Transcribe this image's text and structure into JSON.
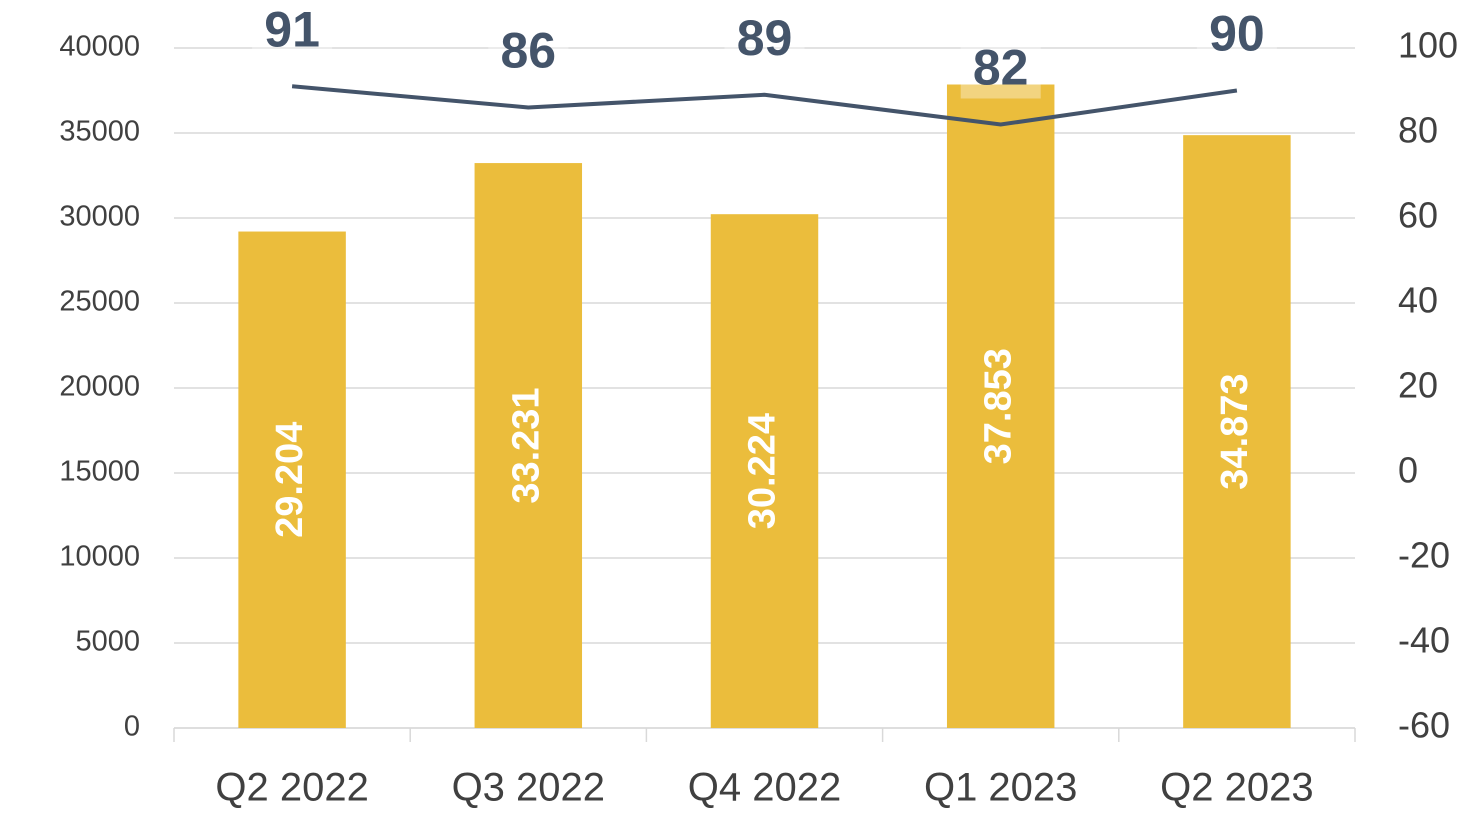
{
  "chart_data": {
    "type": "bar_line",
    "categories": [
      "Q2 2022",
      "Q3 2022",
      "Q4 2022",
      "Q1 2023",
      "Q2 2023"
    ],
    "series": [
      {
        "type": "bar",
        "color": "#ebbd3c",
        "values": [
          29204,
          33231,
          30224,
          37853,
          34873
        ],
        "value_labels": [
          "29.204",
          "33.231",
          "30.224",
          "37.853",
          "34.873"
        ]
      },
      {
        "type": "line",
        "axis": "y2",
        "color": "#44546a",
        "values": [
          91,
          86,
          89,
          82,
          90
        ]
      }
    ],
    "ylim": [
      0,
      40000
    ],
    "yticks": [
      0,
      5000,
      10000,
      15000,
      20000,
      25000,
      30000,
      35000,
      40000
    ],
    "y2lim": [
      -60,
      100
    ],
    "y2ticks": [
      -60,
      -40,
      -20,
      0,
      20,
      40,
      60,
      80,
      100
    ],
    "grid": true
  }
}
